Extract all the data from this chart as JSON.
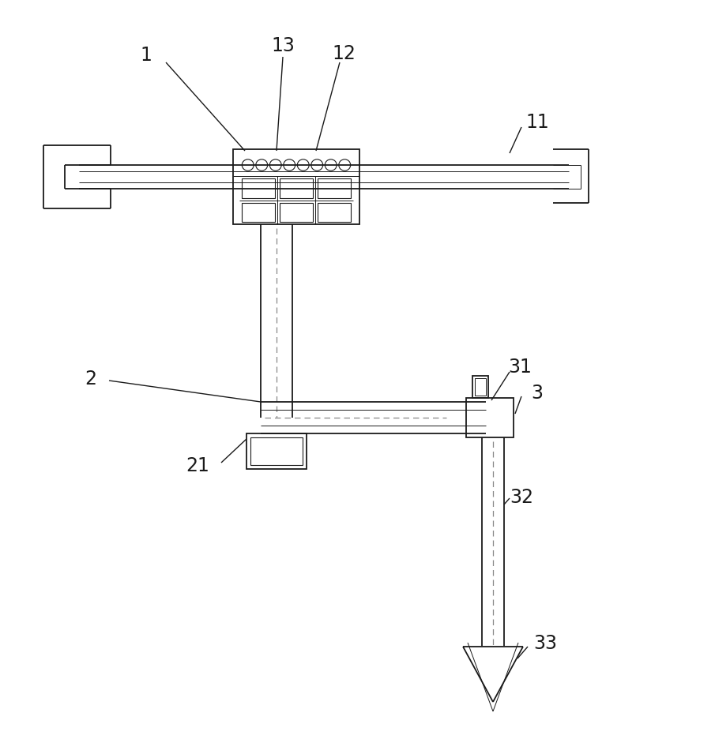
{
  "background_color": "#ffffff",
  "line_color": "#1a1a1a",
  "label_color": "#1a1a1a",
  "lw": 1.3,
  "lw_thin": 0.7,
  "figsize": [
    9.05,
    9.37
  ],
  "dpi": 100
}
